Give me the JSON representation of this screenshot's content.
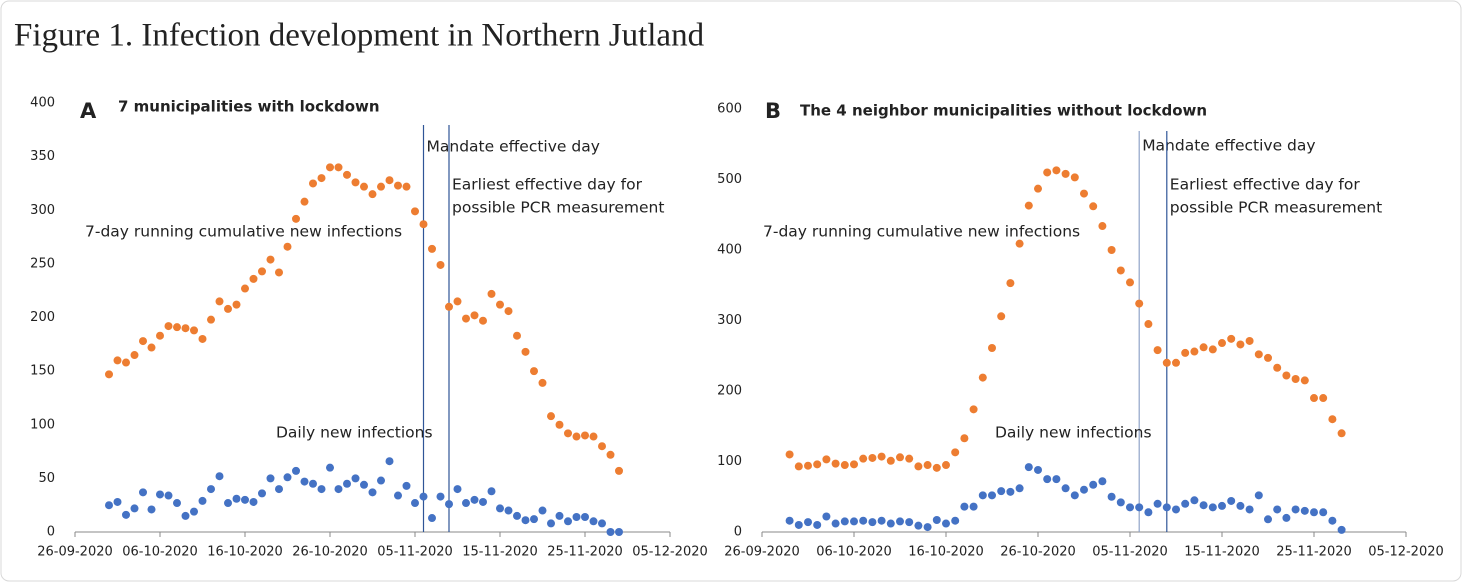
{
  "title": "Figure 1. Infection development in Northern Jutland",
  "chart_data": [
    {
      "type": "scatter",
      "panel": "A",
      "title": "7 municipalities with lockdown",
      "x": [
        "30-09-2020",
        "01-10-2020",
        "02-10-2020",
        "03-10-2020",
        "04-10-2020",
        "05-10-2020",
        "06-10-2020",
        "07-10-2020",
        "08-10-2020",
        "09-10-2020",
        "10-10-2020",
        "11-10-2020",
        "12-10-2020",
        "13-10-2020",
        "14-10-2020",
        "15-10-2020",
        "16-10-2020",
        "17-10-2020",
        "18-10-2020",
        "19-10-2020",
        "20-10-2020",
        "21-10-2020",
        "22-10-2020",
        "23-10-2020",
        "24-10-2020",
        "25-10-2020",
        "26-10-2020",
        "27-10-2020",
        "28-10-2020",
        "29-10-2020",
        "30-10-2020",
        "31-10-2020",
        "01-11-2020",
        "02-11-2020",
        "03-11-2020",
        "04-11-2020",
        "05-11-2020",
        "06-11-2020",
        "07-11-2020",
        "08-11-2020",
        "09-11-2020",
        "10-11-2020",
        "11-11-2020",
        "12-11-2020",
        "13-11-2020",
        "14-11-2020",
        "15-11-2020",
        "16-11-2020",
        "17-11-2020",
        "18-11-2020",
        "19-11-2020",
        "20-11-2020",
        "21-11-2020",
        "22-11-2020",
        "23-11-2020",
        "24-11-2020",
        "25-11-2020",
        "26-11-2020",
        "27-11-2020",
        "28-11-2020",
        "29-11-2020"
      ],
      "series": [
        {
          "name": "7-day running cumulative new infections",
          "color": "#ED7D31",
          "values": [
            147,
            160,
            158,
            165,
            178,
            172,
            183,
            192,
            191,
            190,
            188,
            180,
            198,
            215,
            208,
            212,
            227,
            236,
            243,
            254,
            242,
            266,
            292,
            308,
            325,
            330,
            340,
            340,
            333,
            326,
            322,
            315,
            322,
            328,
            323,
            322,
            299,
            287,
            264,
            249,
            210,
            215,
            199,
            202,
            197,
            222,
            212,
            206,
            183,
            168,
            150,
            139,
            108,
            100,
            92,
            89,
            90,
            89,
            80,
            72,
            57
          ]
        },
        {
          "name": "Daily new infections",
          "color": "#4472C4",
          "values": [
            25,
            28,
            16,
            22,
            37,
            21,
            35,
            34,
            27,
            15,
            19,
            29,
            40,
            52,
            27,
            31,
            30,
            28,
            36,
            50,
            40,
            51,
            57,
            47,
            45,
            40,
            60,
            40,
            45,
            50,
            44,
            37,
            48,
            66,
            34,
            43,
            27,
            33,
            13,
            33,
            26,
            40,
            27,
            30,
            28,
            38,
            22,
            20,
            15,
            11,
            12,
            20,
            8,
            15,
            10,
            14,
            14,
            10,
            8,
            0,
            0
          ]
        }
      ],
      "vlines": [
        {
          "x": "06-11-2020",
          "color": "#2F5597",
          "label": [
            "Mandate effective day"
          ]
        },
        {
          "x": "09-11-2020",
          "color": "#2F5597",
          "label": [
            "Earliest effective day for",
            "possible PCR measurement"
          ]
        }
      ],
      "xlim": [
        "26-09-2020",
        "05-12-2020"
      ],
      "xticks": [
        "26-09-2020",
        "06-10-2020",
        "16-10-2020",
        "26-10-2020",
        "05-11-2020",
        "15-11-2020",
        "25-11-2020",
        "05-12-2020"
      ],
      "ylim": [
        0,
        400
      ],
      "yticks": [
        0,
        50,
        100,
        150,
        200,
        250,
        300,
        350,
        400
      ],
      "grid": false
    },
    {
      "type": "scatter",
      "panel": "B",
      "title": "The 4 neighbor municipalities without lockdown",
      "x": [
        "29-09-2020",
        "30-09-2020",
        "01-10-2020",
        "02-10-2020",
        "03-10-2020",
        "04-10-2020",
        "05-10-2020",
        "06-10-2020",
        "07-10-2020",
        "08-10-2020",
        "09-10-2020",
        "10-10-2020",
        "11-10-2020",
        "12-10-2020",
        "13-10-2020",
        "14-10-2020",
        "15-10-2020",
        "16-10-2020",
        "17-10-2020",
        "18-10-2020",
        "19-10-2020",
        "20-10-2020",
        "21-10-2020",
        "22-10-2020",
        "23-10-2020",
        "24-10-2020",
        "25-10-2020",
        "26-10-2020",
        "27-10-2020",
        "28-10-2020",
        "29-10-2020",
        "30-10-2020",
        "31-10-2020",
        "01-11-2020",
        "02-11-2020",
        "03-11-2020",
        "04-11-2020",
        "05-11-2020",
        "06-11-2020",
        "07-11-2020",
        "08-11-2020",
        "09-11-2020",
        "10-11-2020",
        "11-11-2020",
        "12-11-2020",
        "13-11-2020",
        "14-11-2020",
        "15-11-2020",
        "16-11-2020",
        "17-11-2020",
        "18-11-2020",
        "19-11-2020",
        "20-11-2020",
        "21-11-2020",
        "22-11-2020",
        "23-11-2020",
        "24-11-2020",
        "25-11-2020",
        "26-11-2020",
        "27-11-2020",
        "28-11-2020"
      ],
      "series": [
        {
          "name": "7-day running cumulative new infections",
          "color": "#ED7D31",
          "values": [
            110,
            93,
            94,
            96,
            103,
            97,
            95,
            96,
            104,
            105,
            107,
            101,
            106,
            104,
            93,
            95,
            91,
            95,
            113,
            133,
            174,
            219,
            261,
            306,
            353,
            409,
            463,
            487,
            510,
            513,
            508,
            503,
            480,
            462,
            434,
            400,
            371,
            354,
            324,
            295,
            258,
            240,
            240,
            254,
            256,
            262,
            259,
            268,
            274,
            266,
            271,
            252,
            247,
            233,
            222,
            217,
            215,
            190,
            190,
            160,
            140
          ]
        },
        {
          "name": "Daily new infections",
          "color": "#4472C4",
          "values": [
            16,
            10,
            14,
            10,
            22,
            12,
            15,
            15,
            16,
            14,
            16,
            12,
            15,
            14,
            9,
            7,
            17,
            12,
            16,
            36,
            36,
            52,
            52,
            58,
            57,
            62,
            92,
            88,
            75,
            75,
            62,
            52,
            60,
            67,
            72,
            50,
            42,
            35,
            35,
            28,
            40,
            35,
            32,
            40,
            45,
            38,
            35,
            37,
            44,
            37,
            32,
            52,
            18,
            32,
            20,
            32,
            30,
            28,
            28,
            16,
            3
          ]
        }
      ],
      "vlines": [
        {
          "x": "06-11-2020",
          "color": "#8FA3C8",
          "label": [
            "Mandate effective day"
          ]
        },
        {
          "x": "09-11-2020",
          "color": "#2F5597",
          "label": [
            "Earliest effective day for",
            "possible PCR measurement"
          ]
        }
      ],
      "xlim": [
        "26-09-2020",
        "05-12-2020"
      ],
      "xticks": [
        "26-09-2020",
        "06-10-2020",
        "16-10-2020",
        "26-10-2020",
        "05-11-2020",
        "15-11-2020",
        "25-11-2020",
        "05-12-2020"
      ],
      "ylim": [
        0,
        600
      ],
      "yticks": [
        0,
        100,
        200,
        300,
        400,
        500,
        600
      ],
      "grid": false
    }
  ]
}
